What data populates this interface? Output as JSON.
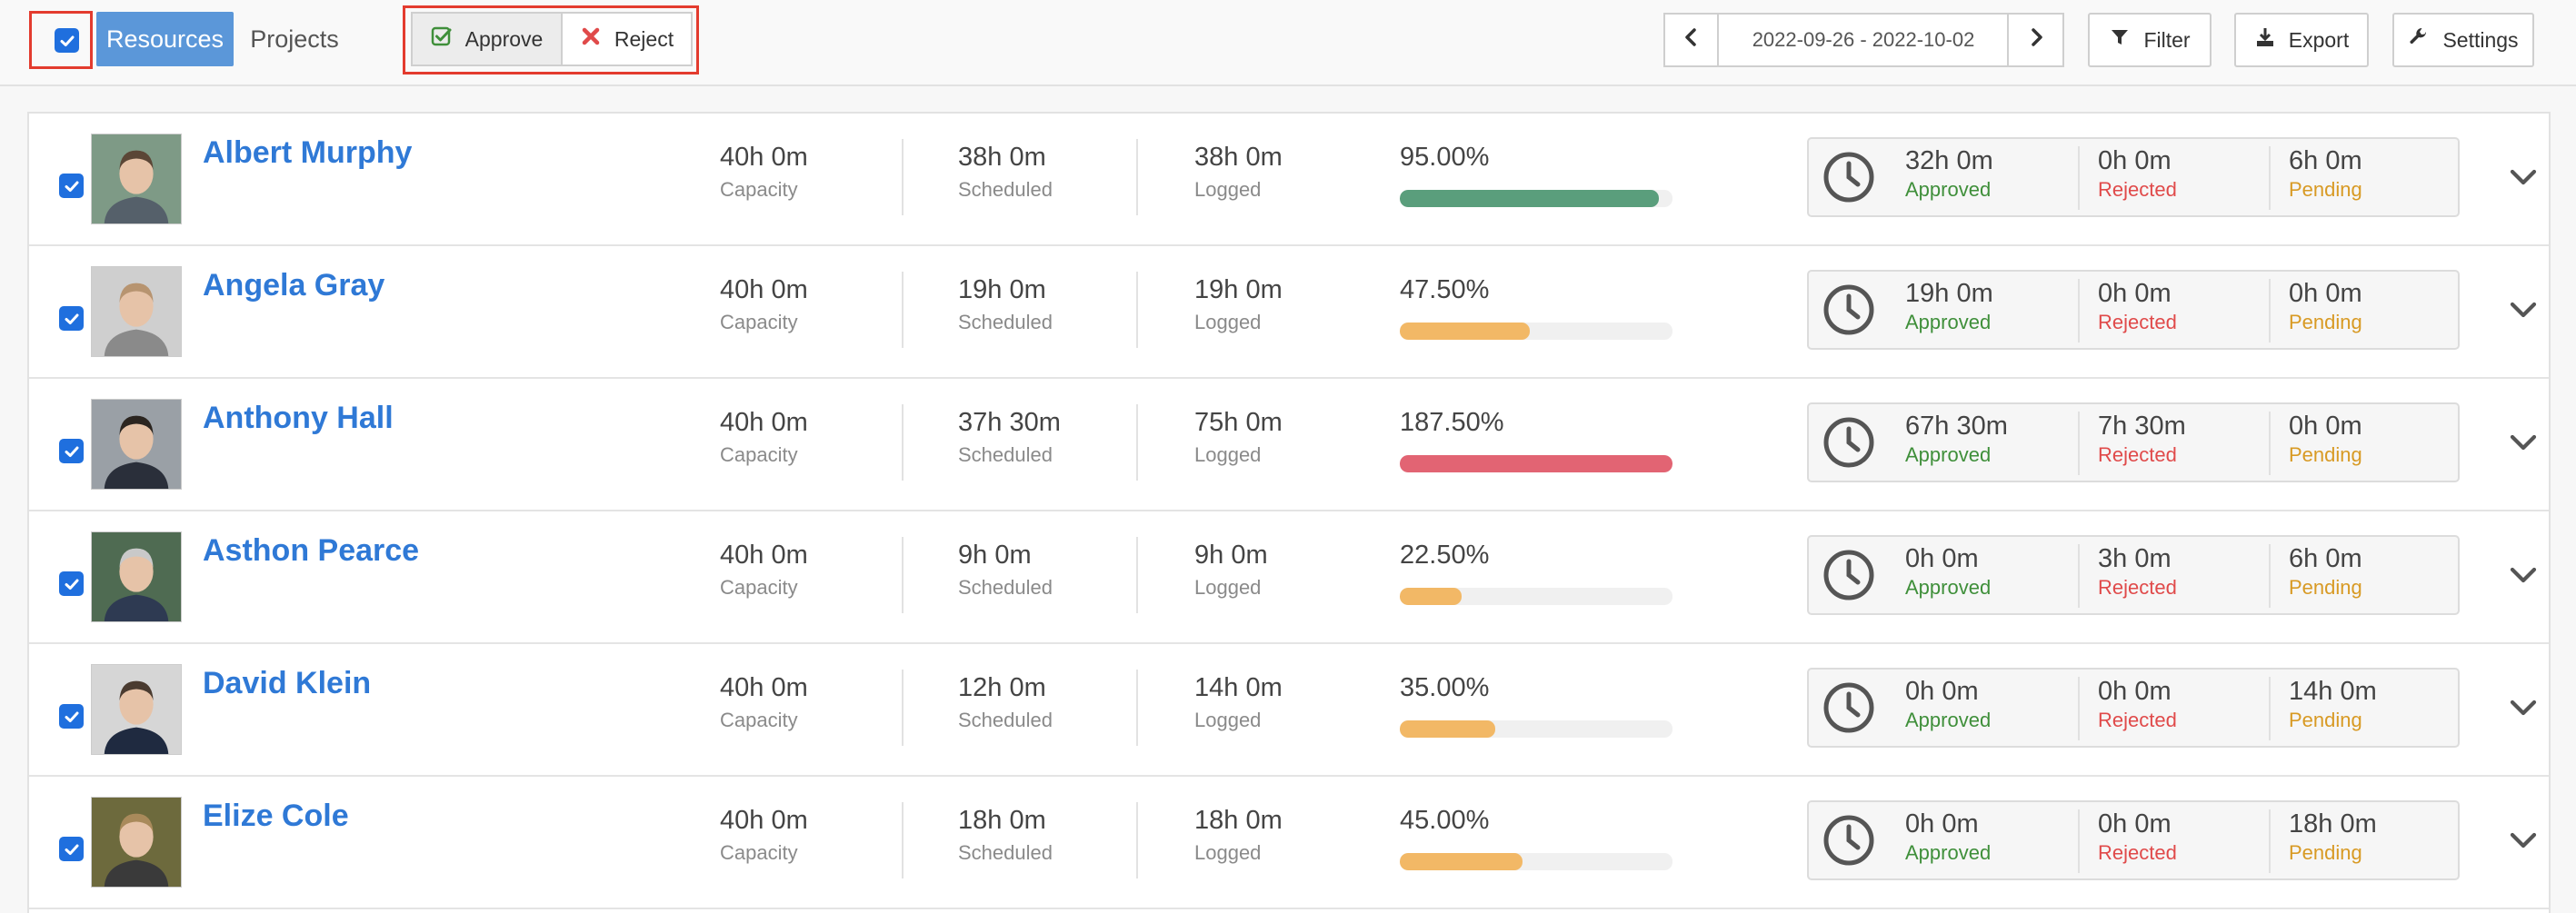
{
  "toolbar": {
    "tabs": [
      {
        "label": "Resources",
        "active": true
      },
      {
        "label": "Projects",
        "active": false
      }
    ],
    "approve_label": "Approve",
    "reject_label": "Reject",
    "date_range": "2022-09-26 - 2022-10-02",
    "filter_label": "Filter",
    "export_label": "Export",
    "settings_label": "Settings"
  },
  "labels": {
    "capacity": "Capacity",
    "scheduled": "Scheduled",
    "logged": "Logged",
    "approved": "Approved",
    "rejected": "Rejected",
    "pending": "Pending"
  },
  "colors": {
    "accent": "#2f79d6",
    "tab_active": "#5b97d9",
    "highlight": "#e33b2e",
    "bar_green": "#5a9e7c",
    "bar_orange": "#f2b866",
    "bar_red": "#e26473",
    "approved": "#3f8f3a",
    "rejected": "#e04a4a",
    "pending": "#d89a24"
  },
  "rows": [
    {
      "name": "Albert Murphy",
      "capacity": "40h 0m",
      "scheduled": "38h 0m",
      "logged": "38h 0m",
      "percent": "95.00%",
      "fill": 0.95,
      "status": "green",
      "approved": "32h 0m",
      "rejected": "0h 0m",
      "pending": "6h 0m"
    },
    {
      "name": "Angela Gray",
      "capacity": "40h 0m",
      "scheduled": "19h 0m",
      "logged": "19h 0m",
      "percent": "47.50%",
      "fill": 0.475,
      "status": "orange",
      "approved": "19h 0m",
      "rejected": "0h 0m",
      "pending": "0h 0m"
    },
    {
      "name": "Anthony Hall",
      "capacity": "40h 0m",
      "scheduled": "37h 30m",
      "logged": "75h 0m",
      "percent": "187.50%",
      "fill": 1.0,
      "status": "red",
      "approved": "67h 30m",
      "rejected": "7h 30m",
      "pending": "0h 0m"
    },
    {
      "name": "Asthon Pearce",
      "capacity": "40h 0m",
      "scheduled": "9h 0m",
      "logged": "9h 0m",
      "percent": "22.50%",
      "fill": 0.225,
      "status": "orange",
      "approved": "0h 0m",
      "rejected": "3h 0m",
      "pending": "6h 0m"
    },
    {
      "name": "David Klein",
      "capacity": "40h 0m",
      "scheduled": "12h 0m",
      "logged": "14h 0m",
      "percent": "35.00%",
      "fill": 0.35,
      "status": "orange",
      "approved": "0h 0m",
      "rejected": "0h 0m",
      "pending": "14h 0m"
    },
    {
      "name": "Elize Cole",
      "capacity": "40h 0m",
      "scheduled": "18h 0m",
      "logged": "18h 0m",
      "percent": "45.00%",
      "fill": 0.45,
      "status": "orange",
      "approved": "0h 0m",
      "rejected": "0h 0m",
      "pending": "18h 0m"
    }
  ]
}
